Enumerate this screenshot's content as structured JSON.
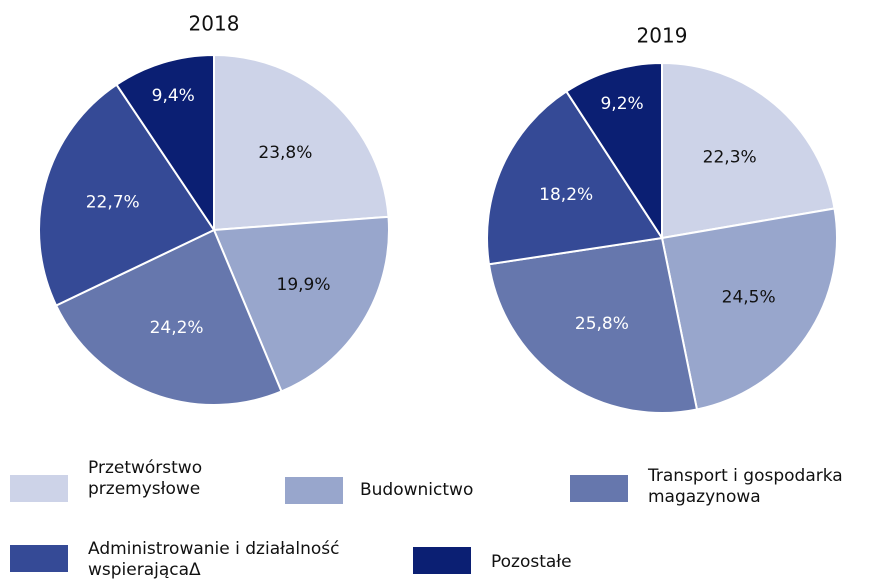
{
  "chart_data": [
    {
      "type": "pie",
      "title": "2018",
      "categories": [
        "Przetwórstwo przemysłowe",
        "Budownictwo",
        "Transport i gospodarka magazynowa",
        "Administrowanie i działalność wspierającaΔ",
        "Pozostałe"
      ],
      "values": [
        23.8,
        19.9,
        24.2,
        22.7,
        9.4
      ],
      "value_labels": [
        "23,8%",
        "19,9%",
        "24,2%",
        "22,7%",
        "9,4%"
      ],
      "colors": [
        "#cdd3e8",
        "#98a6cc",
        "#6677ad",
        "#354a96",
        "#0b1f73"
      ]
    },
    {
      "type": "pie",
      "title": "2019",
      "categories": [
        "Przetwórstwo przemysłowe",
        "Budownictwo",
        "Transport i gospodarka magazynowa",
        "Administrowanie i działalność wspierającaΔ",
        "Pozostałe"
      ],
      "values": [
        22.3,
        24.5,
        25.8,
        18.2,
        9.2
      ],
      "value_labels": [
        "22,3%",
        "24,5%",
        "25,8%",
        "18,2%",
        "9,2%"
      ],
      "colors": [
        "#cdd3e8",
        "#98a6cc",
        "#6677ad",
        "#354a96",
        "#0b1f73"
      ]
    }
  ]
}
